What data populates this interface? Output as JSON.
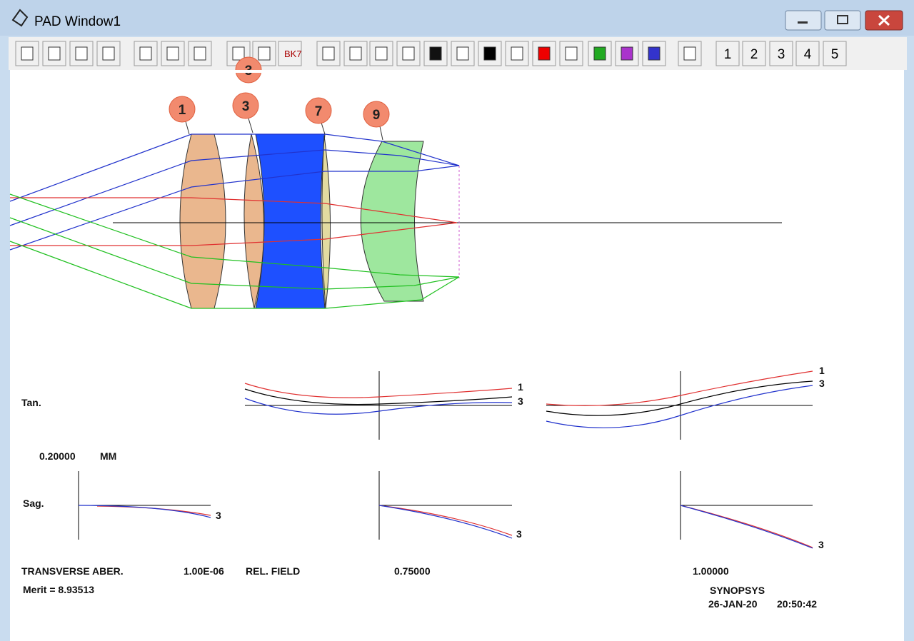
{
  "window": {
    "title": "PAD Window1"
  },
  "toolbar": {
    "glass_icon": "BK7",
    "view_buttons": [
      "1",
      "2",
      "3",
      "4",
      "5"
    ]
  },
  "lens_drawing": {
    "element_labels": [
      "1",
      "3",
      "3",
      "7",
      "9"
    ]
  },
  "plots": {
    "tan_label": "Tan.",
    "sag_label": "Sag.",
    "scale": "0.20000",
    "scale_unit": "MM",
    "tan_curve_labels": [
      [
        "1",
        "3"
      ],
      [
        "1",
        "3"
      ]
    ],
    "sag_curve_labels": [
      "3",
      "3",
      "3"
    ]
  },
  "footer": {
    "transverse": "TRANSVERSE ABER.",
    "wavelength": "1.00E-06",
    "rel_field": "REL. FIELD",
    "fields": [
      "0.75000",
      "1.00000"
    ],
    "merit": "Merit = 8.93513",
    "program": "SYNOPSYS",
    "date": "26-JAN-20",
    "time": "20:50:42"
  }
}
